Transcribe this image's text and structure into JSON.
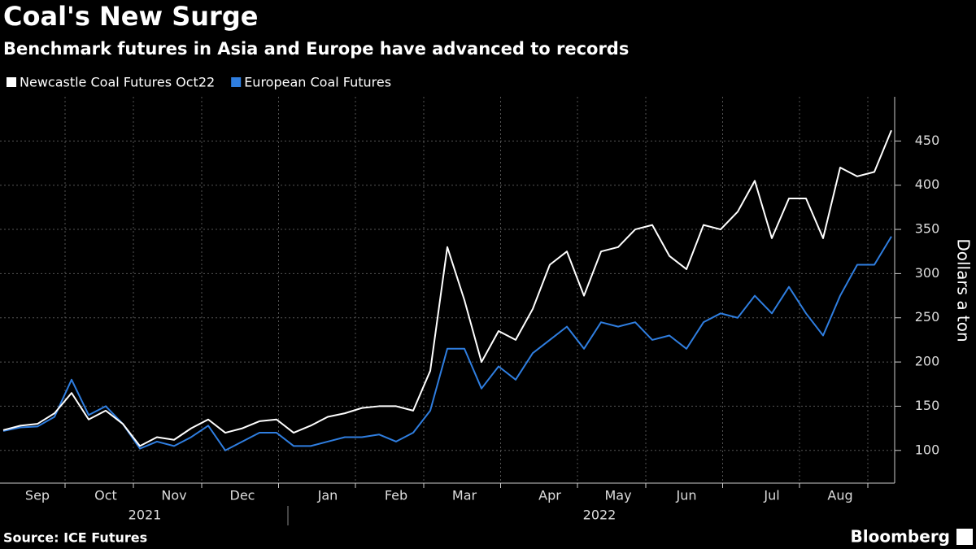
{
  "chart_data": {
    "type": "line",
    "title": "Coal's New Surge",
    "subtitle": "Benchmark futures in Asia and Europe have advanced to records",
    "ylabel": "Dollars a ton",
    "source": "Source: ICE Futures",
    "brand": "Bloomberg",
    "year_labels": [
      "2021",
      "2022"
    ],
    "categories": [
      null,
      null,
      "Sep",
      null,
      null,
      null,
      "Oct",
      null,
      null,
      null,
      "Nov",
      null,
      null,
      null,
      "Dec",
      null,
      null,
      null,
      null,
      "Jan",
      null,
      null,
      null,
      "Feb",
      null,
      null,
      null,
      "Mar",
      null,
      null,
      null,
      null,
      "Apr",
      null,
      null,
      null,
      "May",
      null,
      null,
      null,
      "Jun",
      null,
      null,
      null,
      null,
      "Jul",
      null,
      null,
      null,
      "Aug",
      null,
      null,
      null
    ],
    "series": [
      {
        "name": "Newcastle Coal Futures Oct22",
        "color": "#ffffff",
        "values": [
          123,
          128,
          130,
          142,
          165,
          135,
          145,
          130,
          105,
          115,
          112,
          125,
          135,
          120,
          125,
          133,
          135,
          120,
          128,
          138,
          142,
          148,
          150,
          150,
          145,
          190,
          330,
          270,
          200,
          235,
          225,
          260,
          310,
          325,
          275,
          325,
          330,
          350,
          355,
          320,
          305,
          355,
          350,
          370,
          405,
          340,
          385,
          385,
          340,
          420,
          410,
          415,
          462
        ]
      },
      {
        "name": "European Coal Futures",
        "color": "#2f7ee0",
        "values": [
          122,
          126,
          127,
          138,
          180,
          140,
          150,
          130,
          102,
          110,
          105,
          115,
          128,
          100,
          110,
          120,
          120,
          105,
          105,
          110,
          115,
          115,
          118,
          110,
          120,
          145,
          215,
          215,
          170,
          195,
          180,
          210,
          225,
          240,
          215,
          245,
          240,
          245,
          225,
          230,
          215,
          245,
          255,
          250,
          275,
          255,
          285,
          255,
          230,
          275,
          310,
          310,
          342
        ]
      }
    ],
    "ylim": [
      63,
      500
    ],
    "yticks": [
      100,
      150,
      200,
      250,
      300,
      350,
      400,
      450
    ],
    "grid": true
  }
}
